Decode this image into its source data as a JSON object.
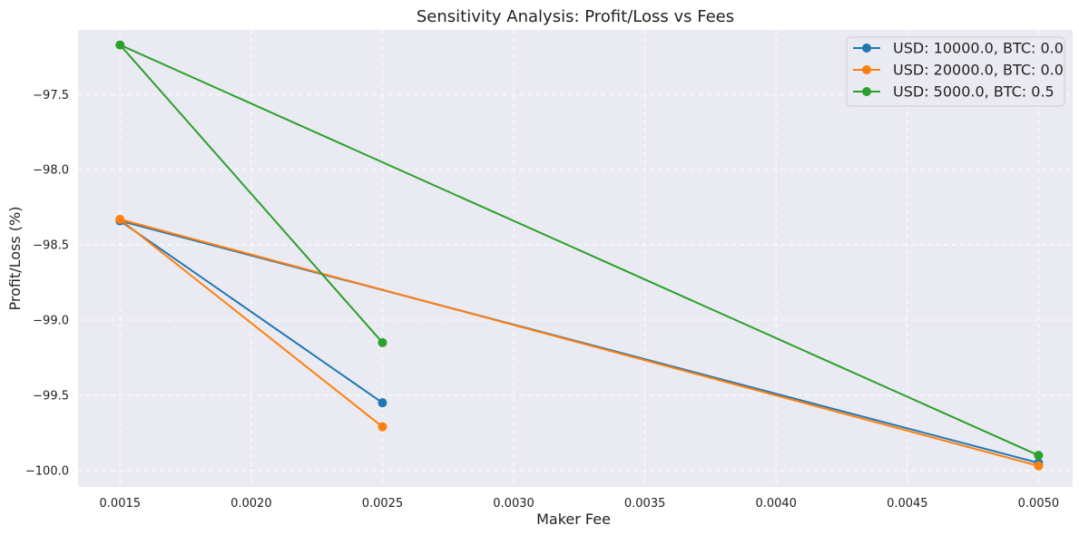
{
  "chart_data": {
    "type": "line",
    "title": "Sensitivity Analysis: Profit/Loss vs Fees",
    "xlabel": "Maker Fee",
    "ylabel": "Profit/Loss (%)",
    "xlim": [
      0.00134,
      0.00513
    ],
    "ylim": [
      -100.11,
      -97.07
    ],
    "xticks": [
      "0.0015",
      "0.0020",
      "0.0025",
      "0.0030",
      "0.0035",
      "0.0040",
      "0.0045",
      "0.0050"
    ],
    "xtick_values": [
      0.0015,
      0.002,
      0.0025,
      0.003,
      0.0035,
      0.004,
      0.0045,
      0.005
    ],
    "yticks": [
      "−97.5",
      "−98.0",
      "−98.5",
      "−99.0",
      "−99.5",
      "−100.0"
    ],
    "ytick_values": [
      -97.5,
      -98.0,
      -98.5,
      -99.0,
      -99.5,
      -100.0
    ],
    "grid": true,
    "legend_position": "top-right",
    "series": [
      {
        "name": "USD: 10000.0, BTC: 0.0",
        "color": "#1f77b4",
        "x": [
          0.005,
          0.0015,
          0.0025
        ],
        "y": [
          -99.95,
          -98.34,
          -99.55
        ]
      },
      {
        "name": "USD: 20000.0, BTC: 0.0",
        "color": "#ff7f0e",
        "x": [
          0.005,
          0.0015,
          0.0025
        ],
        "y": [
          -99.97,
          -98.33,
          -99.71
        ]
      },
      {
        "name": "USD: 5000.0, BTC: 0.5",
        "color": "#2ca02c",
        "x": [
          0.005,
          0.0015,
          0.0025
        ],
        "y": [
          -99.9,
          -97.17,
          -99.15
        ]
      }
    ]
  }
}
